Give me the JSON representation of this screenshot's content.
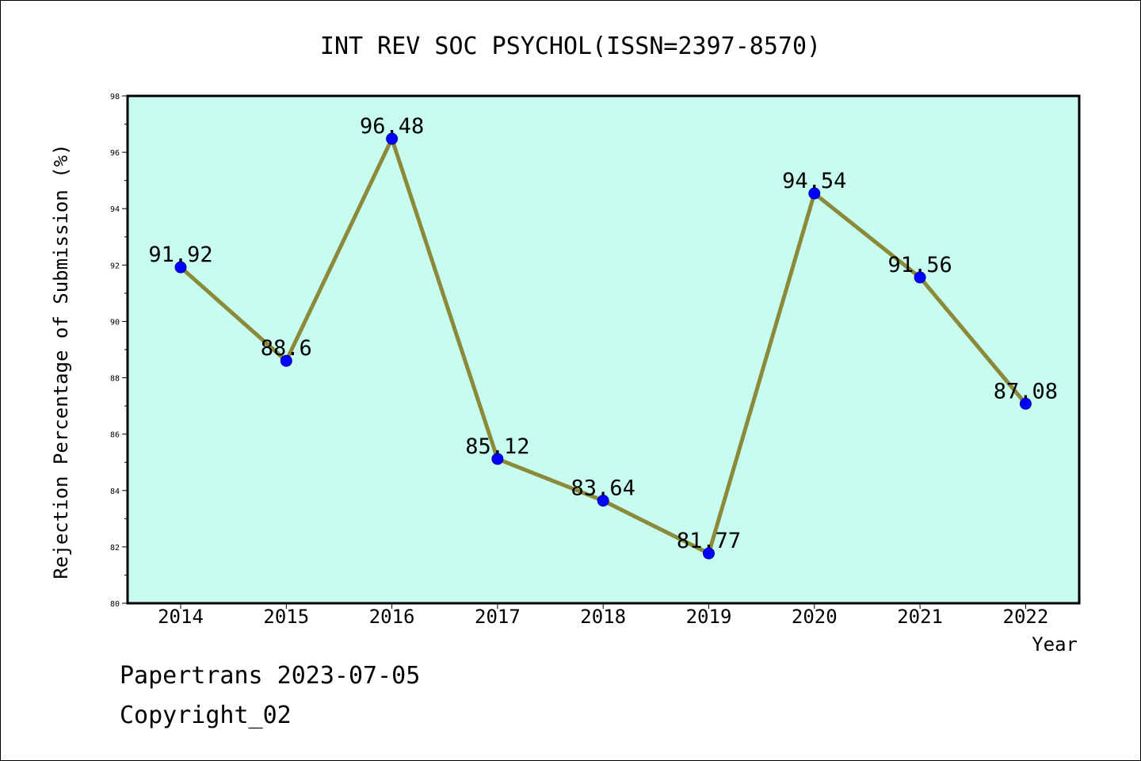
{
  "chart_data": {
    "type": "line",
    "title": "INT REV SOC PSYCHOL(ISSN=2397-8570)",
    "xlabel": "Year",
    "ylabel": "Rejection Percentage of Submission (%)",
    "categories": [
      "2014",
      "2015",
      "2016",
      "2017",
      "2018",
      "2019",
      "2020",
      "2021",
      "2022"
    ],
    "series": [
      {
        "values": [
          91.92,
          88.6,
          96.48,
          85.12,
          83.64,
          81.77,
          94.54,
          91.56,
          87.08
        ]
      }
    ],
    "data_labels": [
      "91.92",
      "88.6",
      "96.48",
      "85.12",
      "83.64",
      "81.77",
      "94.54",
      "91.56",
      "87.08"
    ],
    "ylim": [
      80,
      98
    ],
    "yticks": [
      "80",
      "82",
      "84",
      "86",
      "88",
      "90",
      "92",
      "94",
      "96",
      "98"
    ],
    "grid": false,
    "colors": {
      "plot_background": "#c8fcee",
      "line": "#8b8a3a",
      "marker": "#0000ff"
    }
  },
  "footer": {
    "line1": "Papertrans 2023-07-05",
    "line2": "Copyright_02"
  }
}
